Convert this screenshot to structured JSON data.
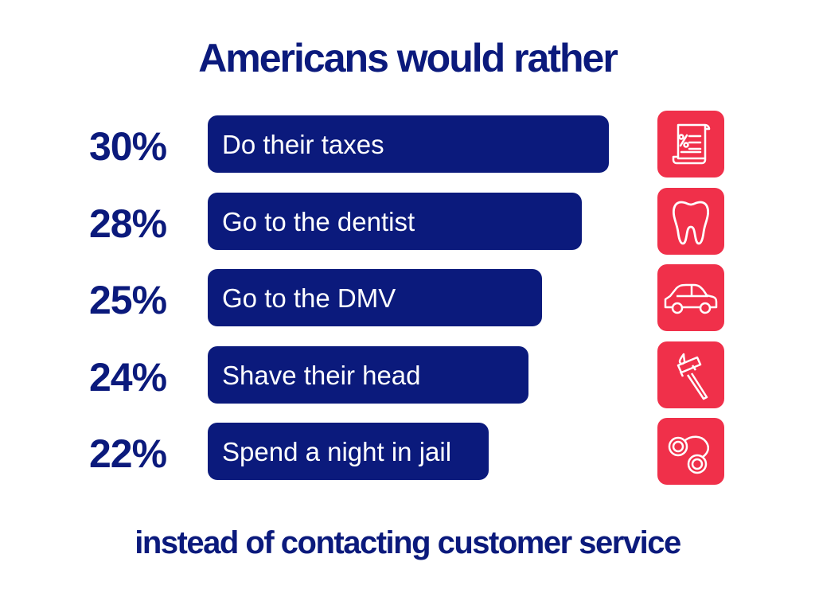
{
  "chart_data": {
    "type": "bar",
    "orientation": "horizontal",
    "title": "Americans would rather",
    "subtitle": "instead of contacting customer service",
    "categories": [
      "Do their taxes",
      "Go to the dentist",
      "Go to the DMV",
      "Shave their head",
      "Spend a night in jail"
    ],
    "values": [
      30,
      28,
      25,
      24,
      22
    ],
    "value_labels": [
      "30%",
      "28%",
      "25%",
      "24%",
      "22%"
    ],
    "icons": [
      "tax-document-icon",
      "tooth-icon",
      "car-icon",
      "razor-icon",
      "handcuffs-icon"
    ],
    "xlabel": "",
    "ylabel": "",
    "xlim": [
      0,
      30
    ],
    "grid": false
  },
  "colors": {
    "bar": "#0b1a7c",
    "icon_bg": "#f0304a",
    "text": "#0b1a7c"
  }
}
